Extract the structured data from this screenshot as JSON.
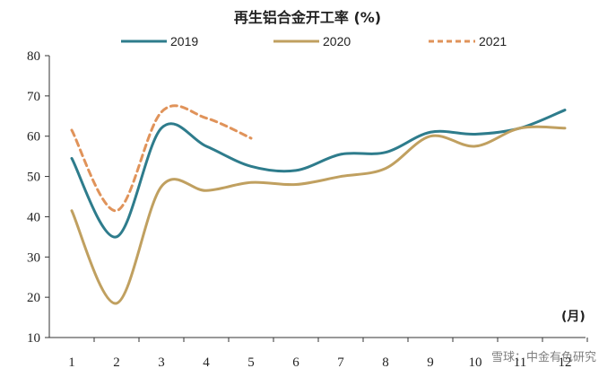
{
  "chart_data": {
    "type": "line",
    "title": "再生铝合金开工率 (%)",
    "xlabel": "(月)",
    "ylabel": "",
    "x": [
      1,
      2,
      3,
      4,
      5,
      6,
      7,
      8,
      9,
      10,
      11,
      12
    ],
    "xtick_labels": [
      "1",
      "2",
      "3",
      "4",
      "5",
      "6",
      "7",
      "8",
      "9",
      "10",
      "11",
      "12"
    ],
    "yticks": [
      10,
      20,
      30,
      40,
      50,
      60,
      70,
      80
    ],
    "ylim": [
      10,
      80
    ],
    "grid": false,
    "legend_position": "top",
    "series": [
      {
        "name": "2019",
        "color": "#2e7c8c",
        "style": "solid",
        "values": [
          [
            1,
            54.5
          ],
          [
            2,
            35
          ],
          [
            3,
            62
          ],
          [
            4,
            57.5
          ],
          [
            5,
            52.5
          ],
          [
            6,
            51.5
          ],
          [
            7,
            55.5
          ],
          [
            8,
            56
          ],
          [
            9,
            61
          ],
          [
            10,
            60.5
          ],
          [
            11,
            62
          ],
          [
            12,
            66.5
          ]
        ]
      },
      {
        "name": "2020",
        "color": "#c0a060",
        "style": "solid",
        "values": [
          [
            1,
            41.5
          ],
          [
            2,
            18.5
          ],
          [
            3,
            47.5
          ],
          [
            4,
            46.5
          ],
          [
            5,
            48.5
          ],
          [
            6,
            48
          ],
          [
            7,
            50
          ],
          [
            8,
            52
          ],
          [
            9,
            60
          ],
          [
            10,
            57.5
          ],
          [
            11,
            62
          ],
          [
            12,
            62
          ]
        ]
      },
      {
        "name": "2021",
        "color": "#e0935a",
        "style": "dashed",
        "values": [
          [
            1,
            61.5
          ],
          [
            2,
            41.5
          ],
          [
            3,
            66
          ],
          [
            4,
            64.5
          ],
          [
            5,
            59.5
          ]
        ]
      }
    ]
  },
  "watermark": "雪球：中金有色研究"
}
